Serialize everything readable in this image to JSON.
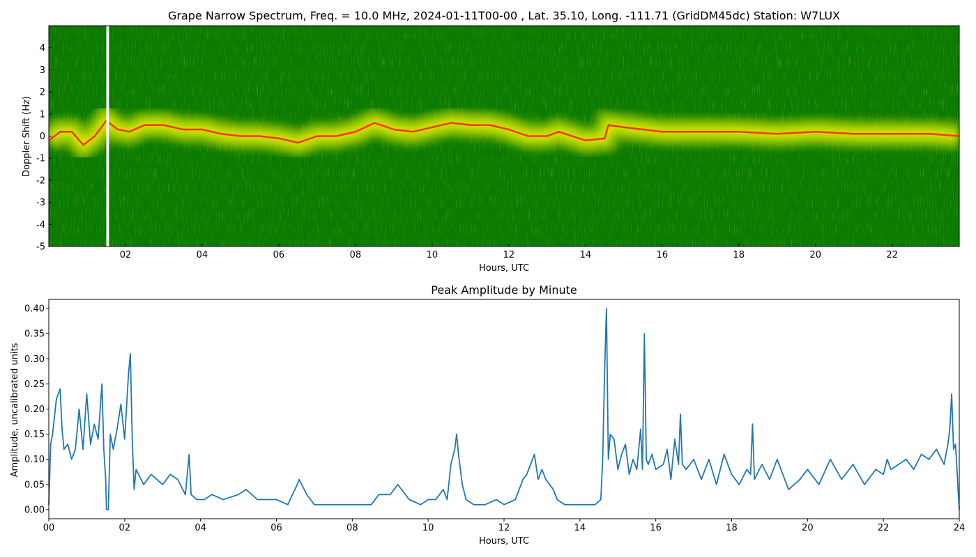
{
  "colors": {
    "spectrum_background": "#0a7a00",
    "spectrum_signal_yellow": "#e6f000",
    "spectrum_signal_red": "#ff3000",
    "dropout_bar": "#ffffff",
    "amplitude_line": "#1f77b4"
  },
  "chart_data": [
    {
      "type": "heatmap",
      "title": "Grape Narrow Spectrum, Freq. = 10.0 MHz, 2024-01-11T00-00 , Lat.  35.10, Long. -111.71 (GridDM45dc) Station: W7LUX",
      "xlabel": "Hours, UTC",
      "ylabel": "Doppler Shift (Hz)",
      "xlim": [
        0,
        23.75
      ],
      "ylim": [
        -5,
        5
      ],
      "x_tick_labels": [
        "02",
        "04",
        "06",
        "08",
        "10",
        "12",
        "14",
        "16",
        "18",
        "20",
        "22"
      ],
      "y_tick_labels": [
        "-5",
        "-4",
        "-3",
        "-2",
        "-1",
        "0",
        "1",
        "2",
        "3",
        "4"
      ],
      "colormap": "green-yellow-red",
      "data_gap_hours": [
        1.5,
        1.57
      ],
      "peak_doppler_trace": {
        "x": [
          0.0,
          0.3,
          0.6,
          0.9,
          1.2,
          1.5,
          1.8,
          2.1,
          2.5,
          3.0,
          3.5,
          4.0,
          4.5,
          5.0,
          5.5,
          6.0,
          6.5,
          7.0,
          7.5,
          8.0,
          8.5,
          9.0,
          9.5,
          10.0,
          10.5,
          11.0,
          11.5,
          12.0,
          12.5,
          13.0,
          13.3,
          14.0,
          14.5,
          14.6,
          15.0,
          15.5,
          16.0,
          17.0,
          18.0,
          19.0,
          20.0,
          21.0,
          22.0,
          23.0,
          23.75
        ],
        "y": [
          -0.2,
          0.2,
          0.2,
          -0.4,
          0.0,
          0.7,
          0.3,
          0.2,
          0.5,
          0.5,
          0.3,
          0.3,
          0.1,
          0.0,
          0.0,
          -0.1,
          -0.3,
          0.0,
          0.0,
          0.2,
          0.6,
          0.3,
          0.2,
          0.4,
          0.6,
          0.5,
          0.5,
          0.3,
          0.0,
          0.0,
          0.2,
          -0.2,
          -0.1,
          0.5,
          0.4,
          0.3,
          0.2,
          0.2,
          0.2,
          0.1,
          0.2,
          0.1,
          0.1,
          0.1,
          0.0
        ]
      }
    },
    {
      "type": "line",
      "title": "Peak Amplitude by Minute",
      "xlabel": "Hours, UTC",
      "ylabel": "Amplitude, uncalibrated units",
      "xlim": [
        0,
        24
      ],
      "ylim": [
        -0.018,
        0.418
      ],
      "x_tick_labels": [
        "00",
        "02",
        "04",
        "06",
        "08",
        "10",
        "12",
        "14",
        "16",
        "18",
        "20",
        "22",
        "24"
      ],
      "y_tick_labels": [
        "0.00",
        "0.05",
        "0.10",
        "0.15",
        "0.20",
        "0.25",
        "0.30",
        "0.35",
        "0.40"
      ],
      "series": [
        {
          "x": [
            0.0,
            0.05,
            0.1,
            0.2,
            0.3,
            0.35,
            0.4,
            0.5,
            0.6,
            0.7,
            0.8,
            0.9,
            1.0,
            1.1,
            1.2,
            1.3,
            1.4,
            1.45,
            1.5,
            1.52,
            1.57,
            1.62,
            1.7,
            1.8,
            1.9,
            2.0,
            2.1,
            2.15,
            2.2,
            2.25,
            2.3,
            2.5,
            2.7,
            3.0,
            3.2,
            3.4,
            3.6,
            3.7,
            3.75,
            3.9,
            4.1,
            4.3,
            4.6,
            5.0,
            5.2,
            5.5,
            6.0,
            6.3,
            6.55,
            6.6,
            6.8,
            7.0,
            7.5,
            8.0,
            8.5,
            8.7,
            9.0,
            9.2,
            9.5,
            9.8,
            10.0,
            10.2,
            10.4,
            10.5,
            10.6,
            10.7,
            10.75,
            10.8,
            10.9,
            11.0,
            11.2,
            11.5,
            11.8,
            12.0,
            12.3,
            12.5,
            12.6,
            12.7,
            12.8,
            12.9,
            13.0,
            13.1,
            13.3,
            13.4,
            13.6,
            14.0,
            14.4,
            14.55,
            14.6,
            14.65,
            14.7,
            14.75,
            14.8,
            14.9,
            15.0,
            15.1,
            15.2,
            15.3,
            15.4,
            15.5,
            15.6,
            15.65,
            15.7,
            15.75,
            15.8,
            15.9,
            16.0,
            16.2,
            16.3,
            16.4,
            16.5,
            16.6,
            16.65,
            16.7,
            16.8,
            17.0,
            17.2,
            17.4,
            17.6,
            17.8,
            18.0,
            18.2,
            18.4,
            18.5,
            18.55,
            18.6,
            18.8,
            19.0,
            19.2,
            19.5,
            19.8,
            20.0,
            20.3,
            20.6,
            20.9,
            21.2,
            21.5,
            21.8,
            22.0,
            22.1,
            22.2,
            22.4,
            22.6,
            22.8,
            23.0,
            23.2,
            23.4,
            23.6,
            23.7,
            23.75,
            23.8,
            23.85,
            23.9,
            24.0
          ],
          "y": [
            0.01,
            0.13,
            0.15,
            0.22,
            0.24,
            0.16,
            0.12,
            0.13,
            0.1,
            0.12,
            0.2,
            0.12,
            0.23,
            0.13,
            0.17,
            0.14,
            0.25,
            0.12,
            0.06,
            0.0,
            0.0,
            0.15,
            0.12,
            0.16,
            0.21,
            0.14,
            0.27,
            0.31,
            0.14,
            0.04,
            0.08,
            0.05,
            0.07,
            0.05,
            0.07,
            0.06,
            0.03,
            0.11,
            0.03,
            0.02,
            0.02,
            0.03,
            0.02,
            0.03,
            0.04,
            0.02,
            0.02,
            0.01,
            0.05,
            0.06,
            0.03,
            0.01,
            0.01,
            0.01,
            0.01,
            0.03,
            0.03,
            0.05,
            0.02,
            0.01,
            0.02,
            0.02,
            0.04,
            0.02,
            0.09,
            0.12,
            0.15,
            0.11,
            0.05,
            0.02,
            0.01,
            0.01,
            0.02,
            0.01,
            0.02,
            0.06,
            0.07,
            0.09,
            0.11,
            0.06,
            0.08,
            0.06,
            0.04,
            0.02,
            0.01,
            0.01,
            0.01,
            0.02,
            0.1,
            0.27,
            0.4,
            0.1,
            0.15,
            0.14,
            0.08,
            0.11,
            0.13,
            0.07,
            0.1,
            0.08,
            0.16,
            0.08,
            0.35,
            0.1,
            0.09,
            0.11,
            0.08,
            0.09,
            0.12,
            0.06,
            0.14,
            0.09,
            0.19,
            0.09,
            0.08,
            0.1,
            0.06,
            0.1,
            0.05,
            0.11,
            0.07,
            0.05,
            0.08,
            0.07,
            0.17,
            0.06,
            0.09,
            0.06,
            0.1,
            0.04,
            0.06,
            0.08,
            0.05,
            0.1,
            0.06,
            0.09,
            0.05,
            0.08,
            0.07,
            0.1,
            0.08,
            0.09,
            0.1,
            0.08,
            0.11,
            0.1,
            0.12,
            0.09,
            0.13,
            0.16,
            0.23,
            0.12,
            0.13,
            0.0
          ]
        }
      ]
    }
  ]
}
